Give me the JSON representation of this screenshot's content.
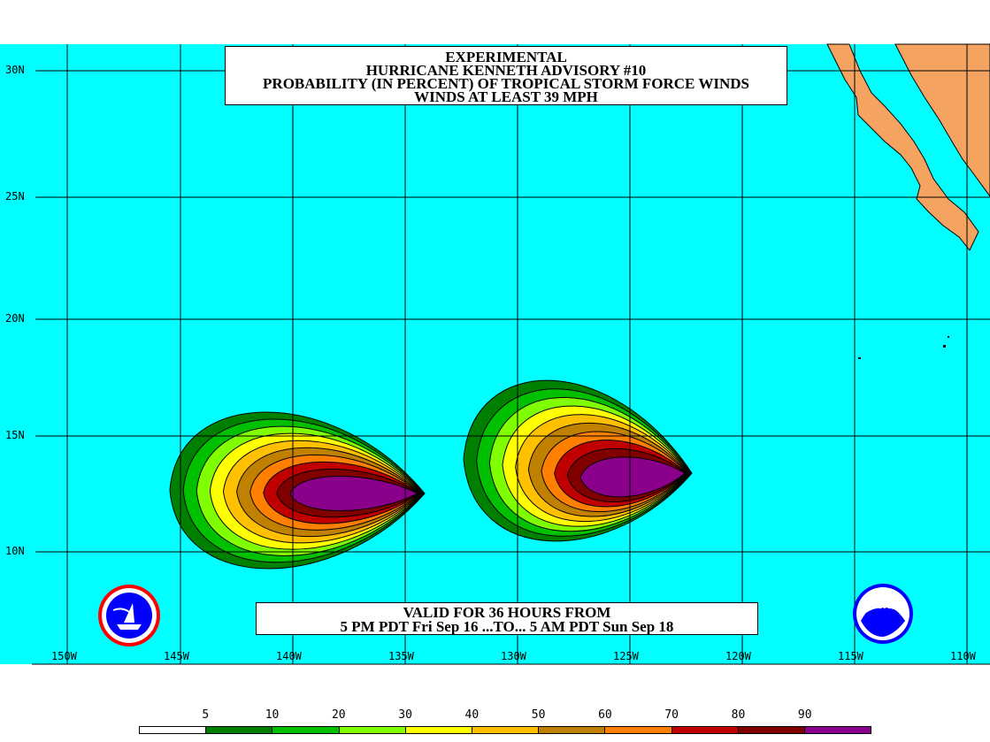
{
  "title": {
    "line1": "EXPERIMENTAL",
    "line2": "HURRICANE KENNETH ADVISORY #10",
    "line3": "PROBABILITY (IN PERCENT) OF TROPICAL STORM FORCE WINDS",
    "line4": "WINDS AT LEAST 39 MPH"
  },
  "valid": {
    "line1": "VALID FOR 36 HOURS FROM",
    "line2": "5 PM PDT Fri Sep 16 ...TO... 5 AM PDT Sun Sep 18"
  },
  "lat_labels": [
    "30N",
    "25N",
    "20N",
    "15N",
    "10N"
  ],
  "lon_labels": [
    "150W",
    "145W",
    "140W",
    "135W",
    "130W",
    "125W",
    "120W",
    "115W",
    "110W"
  ],
  "legend": {
    "numbers": [
      "5",
      "10",
      "20",
      "30",
      "40",
      "50",
      "60",
      "70",
      "80",
      "90"
    ],
    "colors": [
      "#ffffff",
      "#008000",
      "#00c000",
      "#80ff00",
      "#ffff00",
      "#ffc000",
      "#c08000",
      "#ff8000",
      "#c00000",
      "#800000",
      "#8b008b"
    ]
  },
  "colors": {
    "ocean": "#00ffff",
    "land": "#f4a460",
    "grid": "#000000",
    "probability_levels": [
      "#008000",
      "#00c000",
      "#80ff00",
      "#ffff00",
      "#ffc000",
      "#c08000",
      "#ff8000",
      "#c00000",
      "#800000",
      "#8b008b"
    ]
  },
  "logos": {
    "left": "nws-logo-icon",
    "right": "noaa-logo-icon"
  }
}
